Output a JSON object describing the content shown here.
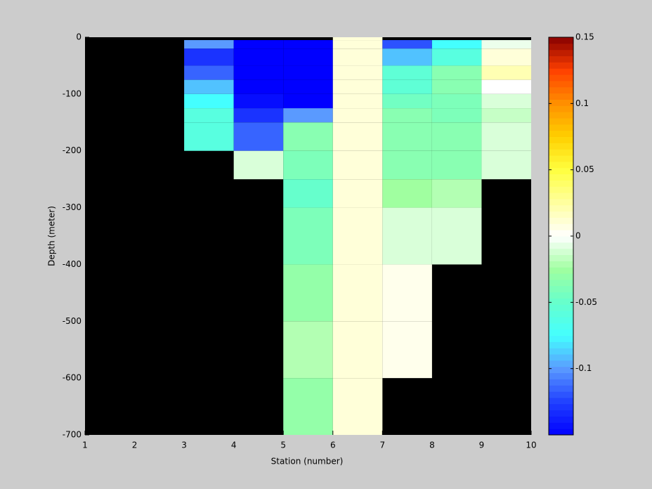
{
  "chart_data": {
    "type": "heatmap",
    "xlabel": "Station (number)",
    "ylabel": "Depth (meter)",
    "x": [
      1,
      2,
      3,
      4,
      5,
      6,
      7,
      8,
      9,
      10
    ],
    "y": [
      0,
      -5,
      -20,
      -50,
      -75,
      -100,
      -125,
      -150,
      -200,
      -250,
      -300,
      -400,
      -500,
      -600,
      -700
    ],
    "values": [
      [
        null,
        null,
        null,
        null,
        null,
        0.01,
        null,
        null,
        null
      ],
      [
        null,
        null,
        -0.1,
        -0.15,
        -0.15,
        0.01,
        -0.12,
        -0.075,
        -0.005
      ],
      [
        null,
        null,
        -0.13,
        -0.15,
        -0.15,
        0.01,
        -0.09,
        -0.06,
        0.01
      ],
      [
        null,
        null,
        -0.115,
        -0.15,
        -0.15,
        0.01,
        -0.055,
        -0.035,
        0.02
      ],
      [
        null,
        null,
        -0.09,
        -0.15,
        -0.15,
        0.01,
        -0.055,
        -0.035,
        0
      ],
      [
        null,
        null,
        -0.075,
        -0.145,
        -0.15,
        0.01,
        -0.045,
        -0.04,
        -0.01
      ],
      [
        null,
        null,
        -0.06,
        -0.13,
        -0.1,
        0.01,
        -0.035,
        -0.04,
        -0.015
      ],
      [
        null,
        null,
        -0.06,
        -0.115,
        -0.035,
        0.01,
        -0.035,
        -0.035,
        -0.01
      ],
      [
        null,
        null,
        null,
        -0.01,
        -0.04,
        0.01,
        -0.035,
        -0.035,
        -0.01
      ],
      [
        null,
        null,
        null,
        null,
        -0.05,
        0.01,
        -0.025,
        -0.02,
        null
      ],
      [
        null,
        null,
        null,
        null,
        -0.04,
        0.01,
        -0.01,
        -0.01,
        null
      ],
      [
        null,
        null,
        null,
        null,
        -0.03,
        0.01,
        0.005,
        null,
        null
      ],
      [
        null,
        null,
        null,
        null,
        -0.02,
        0.01,
        0.005,
        null,
        null
      ],
      [
        null,
        null,
        null,
        null,
        -0.03,
        0.01,
        null,
        null,
        null
      ]
    ],
    "xlim": [
      1,
      10
    ],
    "xticks": [
      1,
      2,
      3,
      4,
      5,
      6,
      7,
      8,
      9,
      10
    ],
    "ylim": [
      -700,
      0
    ],
    "yticks": [
      0,
      -100,
      -200,
      -300,
      -400,
      -500,
      -600,
      -700
    ],
    "clim": [
      -0.15,
      0.15
    ],
    "cticks": [
      -0.1,
      -0.05,
      0,
      0.05,
      0.1,
      0.15
    ],
    "colormap": [
      "#0000ff",
      "#2040ff",
      "#5a9aff",
      "#44ffff",
      "#66ffcc",
      "#a0ffa0",
      "#ffffff",
      "#ffffa0",
      "#ffff40",
      "#ffd000",
      "#ff9000",
      "#ff4000",
      "#880000"
    ],
    "nan_color": "#000000"
  }
}
